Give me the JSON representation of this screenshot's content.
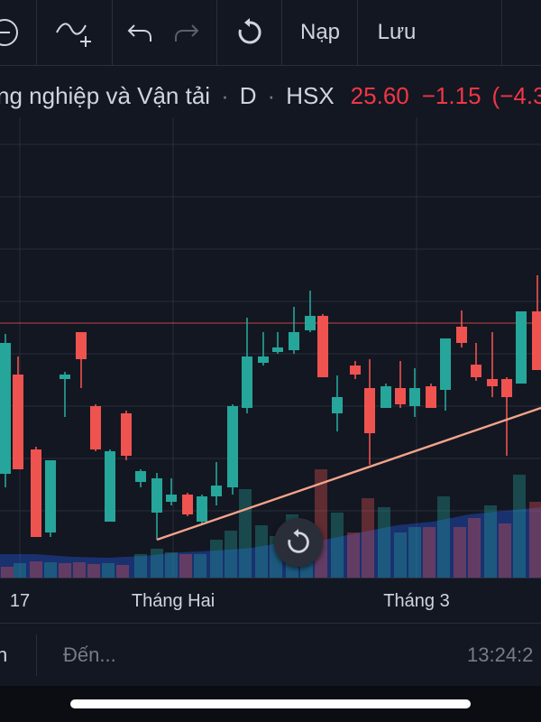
{
  "toolbar": {
    "indicator_icon": "indicator-add-icon",
    "undo_icon": "undo-icon",
    "redo_icon": "redo-icon",
    "reload_icon": "reload-icon",
    "load_label": "Nạp",
    "save_label": "Lưu"
  },
  "header": {
    "symbol_name": "ng nghiệp và Vận tải",
    "interval": "D",
    "exchange": "HSX",
    "price": "25.60",
    "change": "−1.15",
    "change_pct": "(−4.3"
  },
  "chart_data": {
    "type": "candlestick",
    "x_labels": [
      "17",
      "Tháng Hai",
      "Tháng 3"
    ],
    "colors": {
      "up": "#26a69a",
      "down": "#ef5350",
      "trendline": "#f4a48a",
      "volume_area": "#2962ff"
    }
  },
  "bottom": {
    "left_partial": "n",
    "goto_label": "Đến...",
    "time": "13:24:2"
  }
}
